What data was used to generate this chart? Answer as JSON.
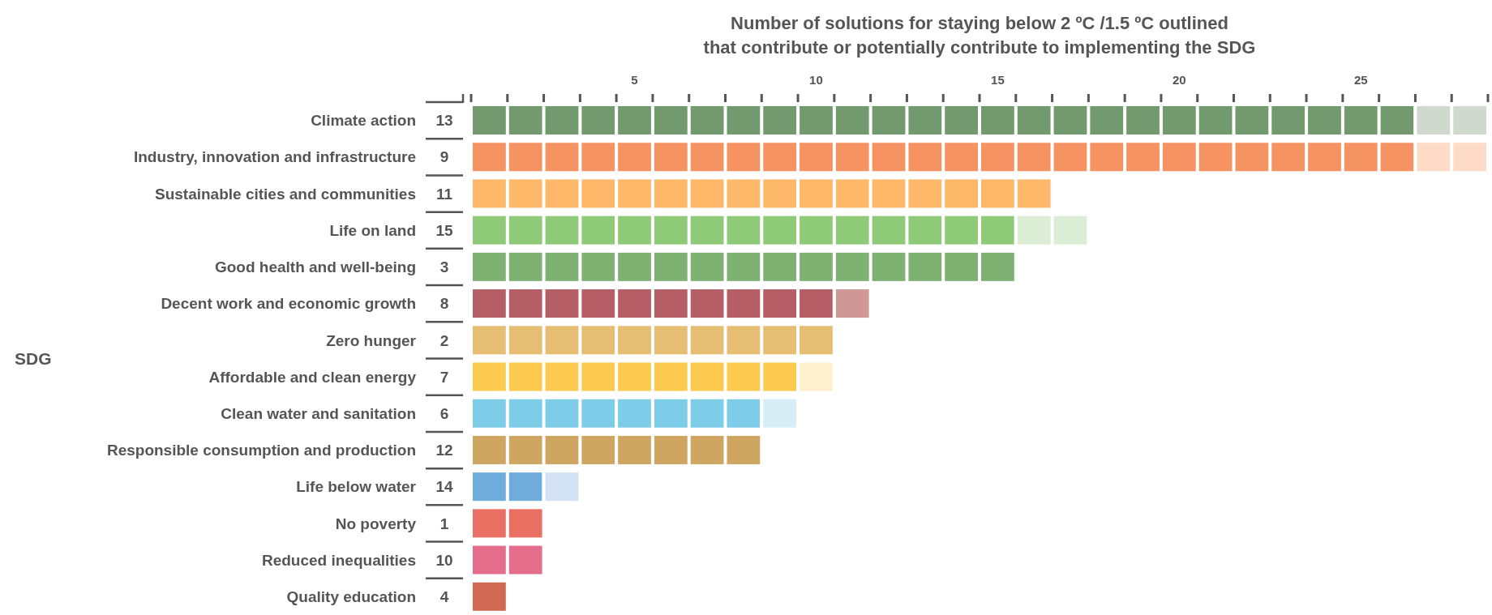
{
  "chart_data": {
    "type": "bar",
    "orientation": "horizontal",
    "stacked": true,
    "title": "Number of solutions for staying below 2 ºC /1.5 ºC outlined\nthat contribute or potentially contribute to implementing the SDG",
    "ylabel": "SDG",
    "categories": [
      "Climate action",
      "Industry, innovation and infrastructure",
      "Sustainable cities and communities",
      "Life on land",
      "Good health and well-being",
      "Decent work and economic growth",
      "Zero hunger",
      "Affordable and clean energy",
      "Clean water and sanitation",
      "Responsible consumption and production",
      "Life below water",
      "No poverty",
      "Reduced inequalities",
      "Quality education"
    ],
    "y2_categories": [
      "13",
      "9",
      "11",
      "15",
      "3",
      "8",
      "2",
      "7",
      "6",
      "12",
      "14",
      "1",
      "10",
      "4"
    ],
    "series": [
      {
        "values": [
          26,
          26,
          16,
          15,
          15,
          10,
          10,
          9,
          8,
          8,
          2,
          2,
          2,
          1
        ],
        "colors": [
          "#739a6e",
          "#f59362",
          "#fdb86a",
          "#8fca78",
          "#7fb172",
          "#b65e66",
          "#e5bd73",
          "#fbca4e",
          "#7dcce8",
          "#cea662",
          "#6fabdb",
          "#e96f62",
          "#e36d8a",
          "#d06854"
        ]
      },
      {
        "values": [
          2,
          2,
          null,
          2,
          null,
          1,
          null,
          1,
          1,
          null,
          1,
          null,
          null,
          null
        ],
        "colors": [
          "#d0d9cd",
          "#fddbc6",
          null,
          "#dcedd5",
          null,
          "#d09797",
          null,
          "#fdf0cd",
          "#d8eef6",
          null,
          "#d3e2f4",
          null,
          null,
          null
        ]
      }
    ],
    "xlim": [
      0,
      28
    ],
    "xticks": [
      {
        "value": 0,
        "label": null
      },
      {
        "value": 1,
        "label": null
      },
      {
        "value": 2,
        "label": null
      },
      {
        "value": 3,
        "label": null
      },
      {
        "value": 4,
        "label": null
      },
      {
        "value": 4.5,
        "label": "5"
      },
      {
        "value": 5,
        "label": null
      },
      {
        "value": 6,
        "label": null
      },
      {
        "value": 7,
        "label": null
      },
      {
        "value": 8,
        "label": null
      },
      {
        "value": 9,
        "label": null
      },
      {
        "value": 9.5,
        "label": "10"
      },
      {
        "value": 10,
        "label": null
      },
      {
        "value": 11,
        "label": null
      },
      {
        "value": 12,
        "label": null
      },
      {
        "value": 13,
        "label": null
      },
      {
        "value": 14,
        "label": null
      },
      {
        "value": 14.5,
        "label": "15"
      },
      {
        "value": 15,
        "label": null
      },
      {
        "value": 16,
        "label": null
      },
      {
        "value": 17,
        "label": null
      },
      {
        "value": 18,
        "label": null
      },
      {
        "value": 19,
        "label": null
      },
      {
        "value": 19.5,
        "label": "20"
      },
      {
        "value": 20,
        "label": null
      },
      {
        "value": 21,
        "label": null
      },
      {
        "value": 22,
        "label": null
      },
      {
        "value": 23,
        "label": null
      },
      {
        "value": 24,
        "label": null
      },
      {
        "value": 24.5,
        "label": "25"
      },
      {
        "value": 25,
        "label": null
      },
      {
        "value": 26,
        "label": null
      },
      {
        "value": 27,
        "label": null
      },
      {
        "value": 28,
        "label": null
      }
    ]
  }
}
